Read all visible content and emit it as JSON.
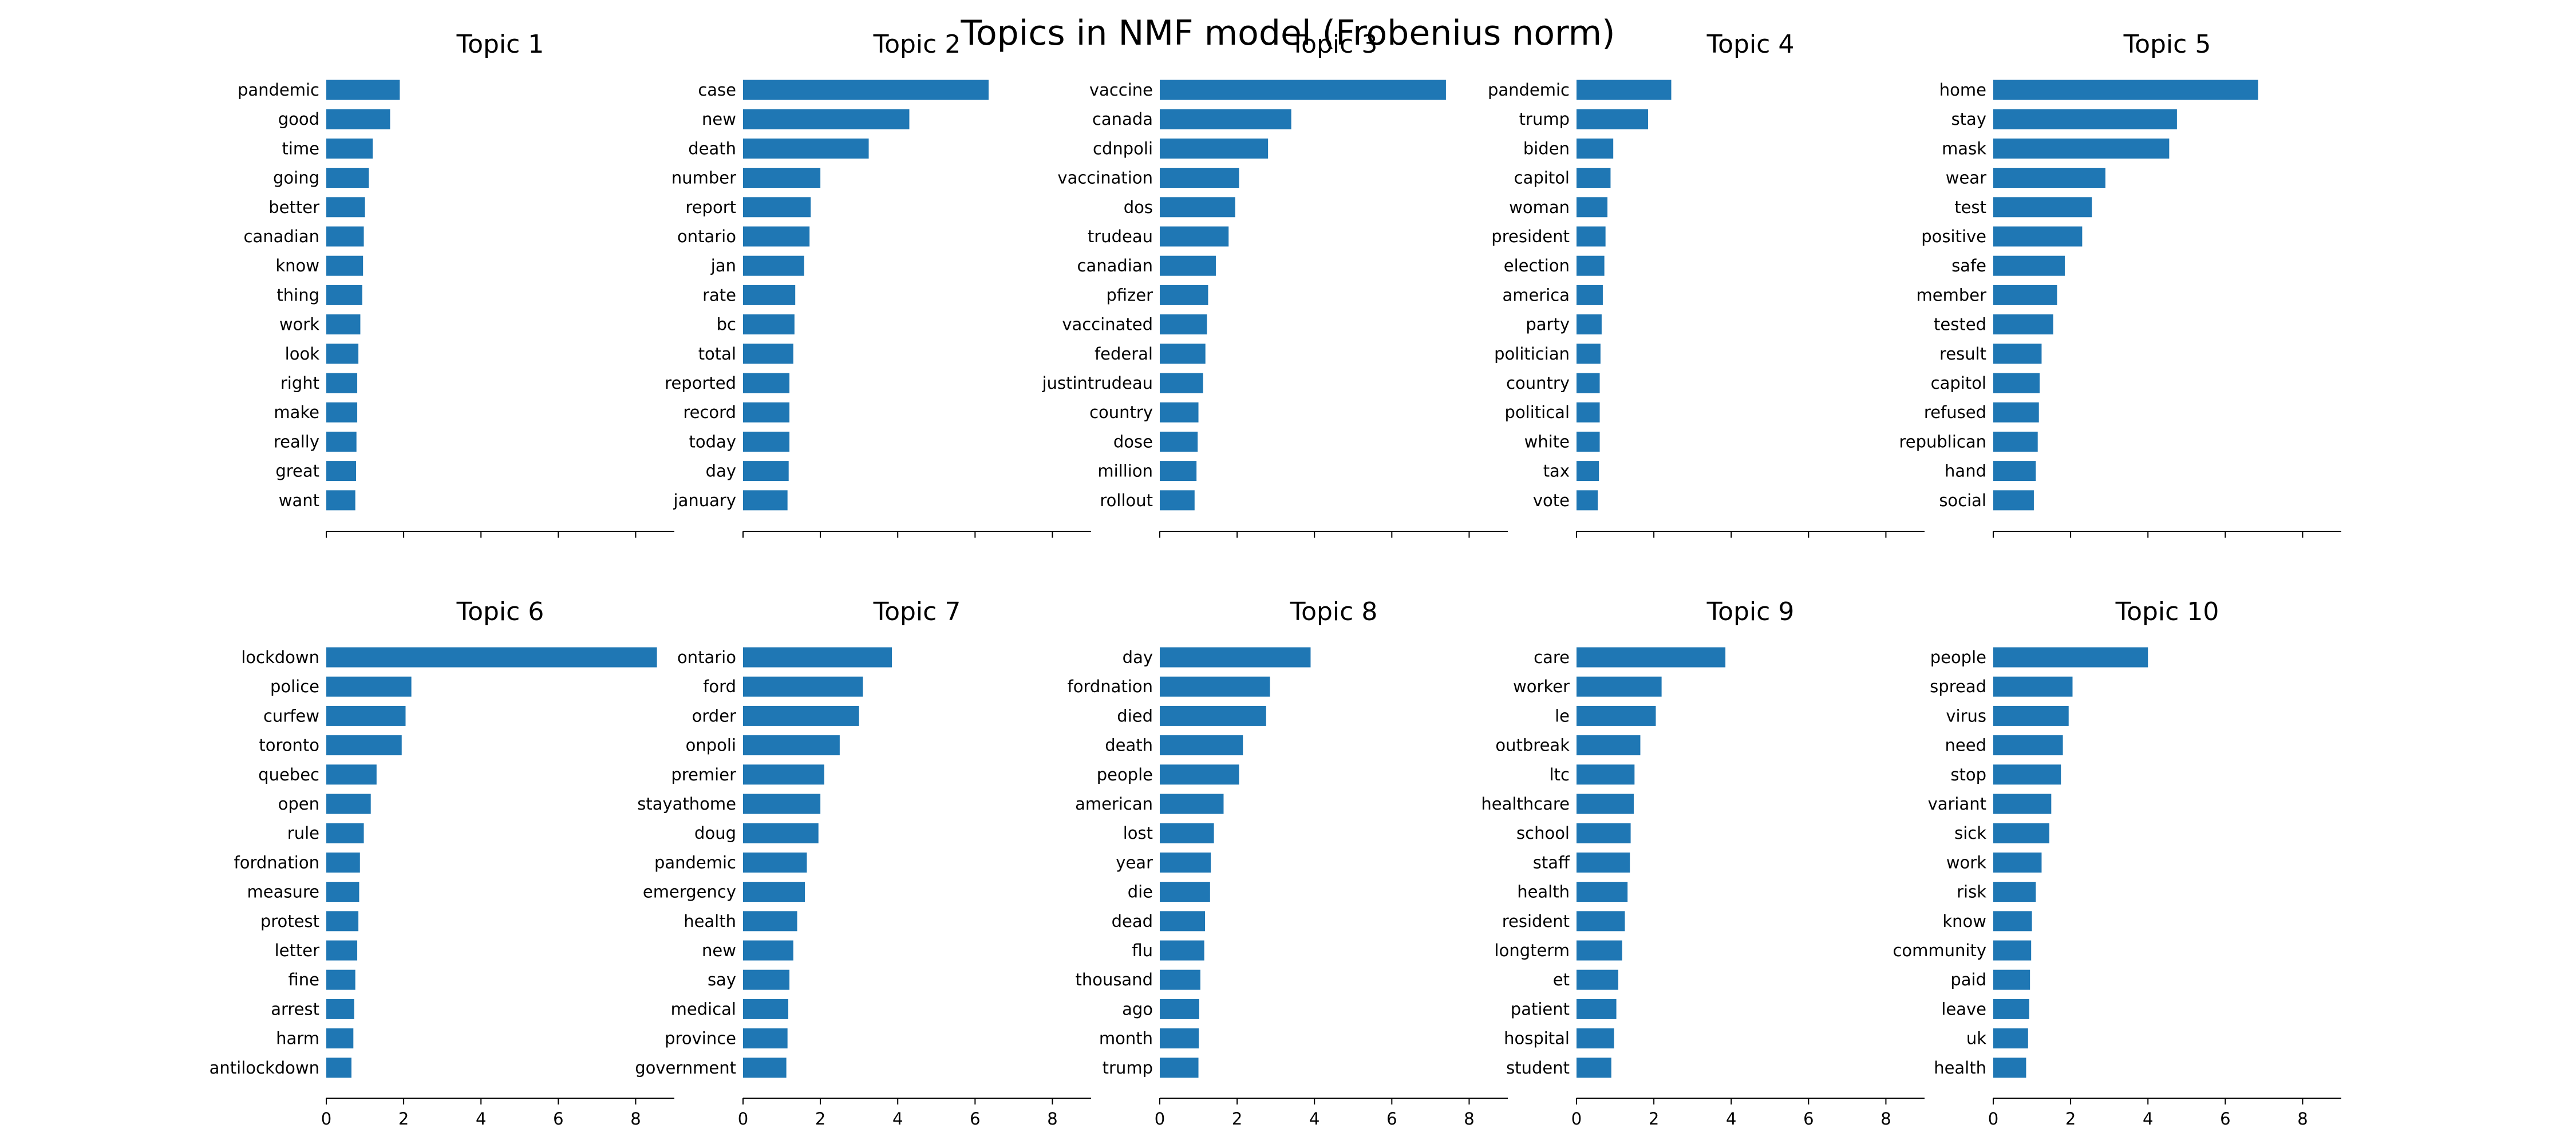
{
  "title": "Topics in NMF model (Frobenius norm)",
  "colors": {
    "bar": "#1f77b4",
    "axis": "#000000",
    "background": "#ffffff"
  },
  "chart_data": [
    {
      "type": "bar",
      "orientation": "horizontal",
      "title": "Topic 1",
      "categories": [
        "pandemic",
        "good",
        "time",
        "going",
        "better",
        "canadian",
        "know",
        "thing",
        "work",
        "look",
        "right",
        "make",
        "really",
        "great",
        "want"
      ],
      "values": [
        1.9,
        1.65,
        1.2,
        1.1,
        1.0,
        0.97,
        0.95,
        0.93,
        0.88,
        0.83,
        0.8,
        0.8,
        0.78,
        0.77,
        0.75
      ],
      "xlim": [
        0,
        9
      ],
      "xticks": [
        0,
        2,
        4,
        6,
        8
      ],
      "show_tick_labels": false,
      "show_ytick_labels": true
    },
    {
      "type": "bar",
      "orientation": "horizontal",
      "title": "Topic 2",
      "categories": [
        "case",
        "new",
        "death",
        "number",
        "report",
        "ontario",
        "jan",
        "rate",
        "bc",
        "total",
        "reported",
        "record",
        "today",
        "day",
        "january"
      ],
      "values": [
        6.35,
        4.3,
        3.25,
        2.0,
        1.75,
        1.72,
        1.58,
        1.35,
        1.33,
        1.3,
        1.2,
        1.2,
        1.2,
        1.18,
        1.15
      ],
      "xlim": [
        0,
        9
      ],
      "xticks": [
        0,
        2,
        4,
        6,
        8
      ],
      "show_tick_labels": false,
      "show_ytick_labels": true
    },
    {
      "type": "bar",
      "orientation": "horizontal",
      "title": "Topic 3",
      "categories": [
        "vaccine",
        "canada",
        "cdnpoli",
        "vaccination",
        "dos",
        "trudeau",
        "canadian",
        "pfizer",
        "vaccinated",
        "federal",
        "justintrudeau",
        "country",
        "dose",
        "million",
        "rollout"
      ],
      "values": [
        7.4,
        3.4,
        2.8,
        2.05,
        1.95,
        1.78,
        1.45,
        1.25,
        1.22,
        1.18,
        1.12,
        1.0,
        0.98,
        0.95,
        0.9
      ],
      "xlim": [
        0,
        9
      ],
      "xticks": [
        0,
        2,
        4,
        6,
        8
      ],
      "show_tick_labels": false,
      "show_ytick_labels": true
    },
    {
      "type": "bar",
      "orientation": "horizontal",
      "title": "Topic 4",
      "categories": [
        "pandemic",
        "trump",
        "biden",
        "capitol",
        "woman",
        "president",
        "election",
        "america",
        "party",
        "politician",
        "country",
        "political",
        "white",
        "tax",
        "vote"
      ],
      "values": [
        2.45,
        1.85,
        0.95,
        0.88,
        0.8,
        0.75,
        0.72,
        0.68,
        0.65,
        0.62,
        0.6,
        0.6,
        0.6,
        0.58,
        0.55
      ],
      "xlim": [
        0,
        9
      ],
      "xticks": [
        0,
        2,
        4,
        6,
        8
      ],
      "show_tick_labels": false,
      "show_ytick_labels": true
    },
    {
      "type": "bar",
      "orientation": "horizontal",
      "title": "Topic 5",
      "categories": [
        "home",
        "stay",
        "mask",
        "wear",
        "test",
        "positive",
        "safe",
        "member",
        "tested",
        "result",
        "capitol",
        "refused",
        "republican",
        "hand",
        "social"
      ],
      "values": [
        6.85,
        4.75,
        4.55,
        2.9,
        2.55,
        2.3,
        1.85,
        1.65,
        1.55,
        1.25,
        1.2,
        1.18,
        1.15,
        1.1,
        1.05
      ],
      "xlim": [
        0,
        9
      ],
      "xticks": [
        0,
        2,
        4,
        6,
        8
      ],
      "show_tick_labels": false,
      "show_ytick_labels": true
    },
    {
      "type": "bar",
      "orientation": "horizontal",
      "title": "Topic 6",
      "categories": [
        "lockdown",
        "police",
        "curfew",
        "toronto",
        "quebec",
        "open",
        "rule",
        "fordnation",
        "measure",
        "protest",
        "letter",
        "fine",
        "arrest",
        "harm",
        "antilockdown"
      ],
      "values": [
        8.55,
        2.2,
        2.05,
        1.95,
        1.3,
        1.15,
        0.97,
        0.87,
        0.85,
        0.83,
        0.8,
        0.75,
        0.72,
        0.7,
        0.65
      ],
      "xlim": [
        0,
        9
      ],
      "xticks": [
        0,
        2,
        4,
        6,
        8
      ],
      "show_tick_labels": true,
      "show_ytick_labels": true
    },
    {
      "type": "bar",
      "orientation": "horizontal",
      "title": "Topic 7",
      "categories": [
        "ontario",
        "ford",
        "order",
        "onpoli",
        "premier",
        "stayathome",
        "doug",
        "pandemic",
        "emergency",
        "health",
        "new",
        "say",
        "medical",
        "province",
        "government"
      ],
      "values": [
        3.85,
        3.1,
        3.0,
        2.5,
        2.1,
        2.0,
        1.95,
        1.65,
        1.6,
        1.4,
        1.3,
        1.2,
        1.17,
        1.15,
        1.12
      ],
      "xlim": [
        0,
        9
      ],
      "xticks": [
        0,
        2,
        4,
        6,
        8
      ],
      "show_tick_labels": true,
      "show_ytick_labels": true
    },
    {
      "type": "bar",
      "orientation": "horizontal",
      "title": "Topic 8",
      "categories": [
        "day",
        "fordnation",
        "died",
        "death",
        "people",
        "american",
        "lost",
        "year",
        "die",
        "dead",
        "flu",
        "thousand",
        "ago",
        "month",
        "trump"
      ],
      "values": [
        3.9,
        2.85,
        2.75,
        2.15,
        2.05,
        1.65,
        1.4,
        1.32,
        1.3,
        1.17,
        1.15,
        1.05,
        1.02,
        1.01,
        1.0
      ],
      "xlim": [
        0,
        9
      ],
      "xticks": [
        0,
        2,
        4,
        6,
        8
      ],
      "show_tick_labels": true,
      "show_ytick_labels": true
    },
    {
      "type": "bar",
      "orientation": "horizontal",
      "title": "Topic 9",
      "categories": [
        "care",
        "worker",
        "le",
        "outbreak",
        "ltc",
        "healthcare",
        "school",
        "staff",
        "health",
        "resident",
        "longterm",
        "et",
        "patient",
        "hospital",
        "student"
      ],
      "values": [
        3.85,
        2.2,
        2.05,
        1.65,
        1.5,
        1.48,
        1.4,
        1.38,
        1.32,
        1.25,
        1.18,
        1.08,
        1.03,
        0.97,
        0.9
      ],
      "xlim": [
        0,
        9
      ],
      "xticks": [
        0,
        2,
        4,
        6,
        8
      ],
      "show_tick_labels": true,
      "show_ytick_labels": true
    },
    {
      "type": "bar",
      "orientation": "horizontal",
      "title": "Topic 10",
      "categories": [
        "people",
        "spread",
        "virus",
        "need",
        "stop",
        "variant",
        "sick",
        "work",
        "risk",
        "know",
        "community",
        "paid",
        "leave",
        "uk",
        "health"
      ],
      "values": [
        4.0,
        2.05,
        1.95,
        1.8,
        1.75,
        1.5,
        1.45,
        1.25,
        1.1,
        1.0,
        0.98,
        0.95,
        0.93,
        0.9,
        0.85
      ],
      "xlim": [
        0,
        9
      ],
      "xticks": [
        0,
        2,
        4,
        6,
        8
      ],
      "show_tick_labels": true,
      "show_ytick_labels": true
    }
  ]
}
